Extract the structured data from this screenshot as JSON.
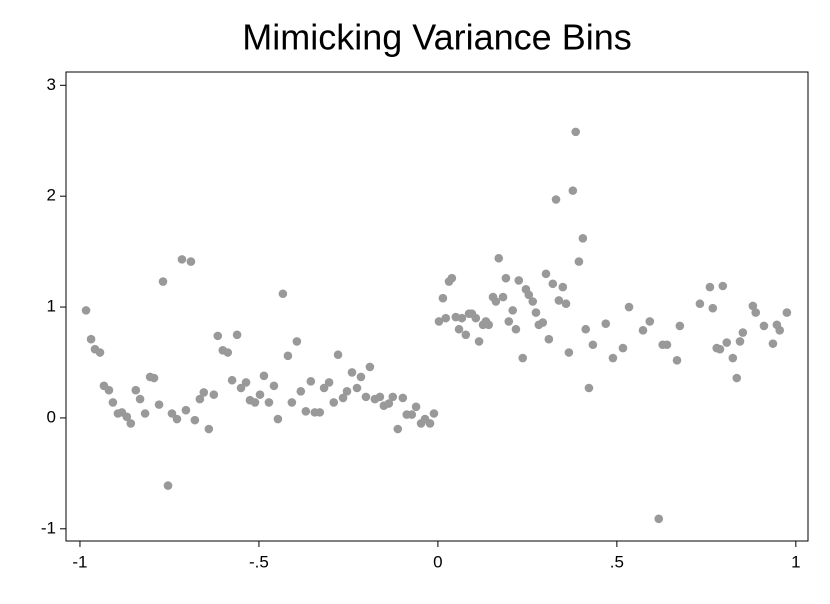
{
  "chart_data": {
    "type": "scatter",
    "title": "Mimicking Variance Bins",
    "xlim": [
      -1.039,
      1.034
    ],
    "ylim": [
      -1.11,
      3.12
    ],
    "xticks": [
      -1,
      {
        "value": -0.5,
        "label": "-.5"
      },
      0,
      {
        "value": 0.5,
        "label": ".5"
      },
      1
    ],
    "yticks": [
      -1,
      0,
      1,
      2,
      3
    ],
    "color": "#999999",
    "x": [
      -0.983,
      -0.969,
      -0.958,
      -0.944,
      -0.933,
      -0.919,
      -0.908,
      -0.894,
      -0.883,
      -0.869,
      -0.858,
      -0.844,
      -0.832,
      -0.818,
      -0.804,
      -0.793,
      -0.779,
      -0.768,
      -0.754,
      -0.743,
      -0.729,
      -0.715,
      -0.704,
      -0.69,
      -0.679,
      -0.665,
      -0.654,
      -0.64,
      -0.626,
      -0.615,
      -0.601,
      -0.587,
      -0.575,
      -0.561,
      -0.55,
      -0.536,
      -0.525,
      -0.511,
      -0.497,
      -0.486,
      -0.472,
      -0.458,
      -0.447,
      -0.433,
      -0.419,
      -0.408,
      -0.394,
      -0.383,
      -0.369,
      -0.355,
      -0.344,
      -0.33,
      -0.318,
      -0.304,
      -0.291,
      -0.279,
      -0.265,
      -0.254,
      -0.24,
      -0.226,
      -0.215,
      -0.201,
      -0.19,
      -0.176,
      -0.162,
      -0.151,
      -0.137,
      -0.126,
      -0.112,
      -0.098,
      -0.087,
      -0.073,
      -0.061,
      -0.047,
      -0.036,
      -0.022,
      -0.011,
      0.003,
      0.014,
      0.022,
      0.031,
      0.039,
      0.05,
      0.059,
      0.067,
      0.078,
      0.087,
      0.095,
      0.106,
      0.115,
      0.126,
      0.134,
      0.142,
      0.154,
      0.162,
      0.17,
      0.182,
      0.19,
      0.198,
      0.209,
      0.218,
      0.226,
      0.237,
      0.246,
      0.254,
      0.265,
      0.274,
      0.282,
      0.293,
      0.302,
      0.31,
      0.321,
      0.33,
      0.338,
      0.349,
      0.358,
      0.366,
      0.377,
      0.385,
      0.394,
      0.405,
      0.413,
      0.422,
      0.433,
      0.469,
      0.489,
      0.517,
      0.534,
      0.573,
      0.592,
      0.617,
      0.628,
      0.64,
      0.668,
      0.676,
      0.732,
      0.76,
      0.768,
      0.779,
      0.788,
      0.796,
      0.807,
      0.824,
      0.835,
      0.844,
      0.852,
      0.88,
      0.888,
      0.911,
      0.936,
      0.947,
      0.955,
      0.975
    ],
    "values": [
      0.97,
      0.71,
      0.62,
      0.59,
      0.29,
      0.25,
      0.14,
      0.04,
      0.05,
      0.01,
      -0.05,
      0.25,
      0.17,
      0.04,
      0.37,
      0.36,
      0.12,
      1.23,
      -0.61,
      0.04,
      -0.01,
      1.43,
      0.07,
      1.41,
      -0.02,
      0.17,
      0.23,
      -0.1,
      0.21,
      0.74,
      0.61,
      0.59,
      0.34,
      0.75,
      0.27,
      0.32,
      0.16,
      0.14,
      0.21,
      0.38,
      0.14,
      0.29,
      -0.01,
      1.12,
      0.56,
      0.14,
      0.69,
      0.24,
      0.06,
      0.33,
      0.05,
      0.05,
      0.27,
      0.32,
      0.14,
      0.57,
      0.18,
      0.24,
      0.41,
      0.27,
      0.37,
      0.19,
      0.46,
      0.17,
      0.19,
      0.11,
      0.13,
      0.19,
      -0.1,
      0.18,
      0.03,
      0.03,
      0.1,
      -0.05,
      -0.01,
      -0.05,
      0.04,
      0.87,
      1.08,
      0.9,
      1.23,
      1.26,
      0.91,
      0.8,
      0.9,
      0.75,
      0.94,
      0.94,
      0.9,
      0.69,
      0.84,
      0.87,
      0.84,
      1.09,
      1.05,
      1.44,
      1.09,
      1.26,
      0.87,
      0.97,
      0.8,
      1.24,
      0.54,
      1.16,
      1.11,
      1.05,
      0.95,
      0.84,
      0.86,
      1.3,
      0.71,
      1.21,
      1.97,
      1.06,
      1.18,
      1.03,
      0.59,
      2.05,
      2.58,
      1.41,
      1.62,
      0.8,
      0.27,
      0.66,
      0.85,
      0.54,
      0.63,
      1.0,
      0.79,
      0.87,
      -0.91,
      0.66,
      0.66,
      0.52,
      0.83,
      1.03,
      1.18,
      0.99,
      0.63,
      0.62,
      1.19,
      0.68,
      0.54,
      0.36,
      0.69,
      0.77,
      1.01,
      0.95,
      0.83,
      0.67,
      0.84,
      0.79,
      0.95
    ]
  }
}
